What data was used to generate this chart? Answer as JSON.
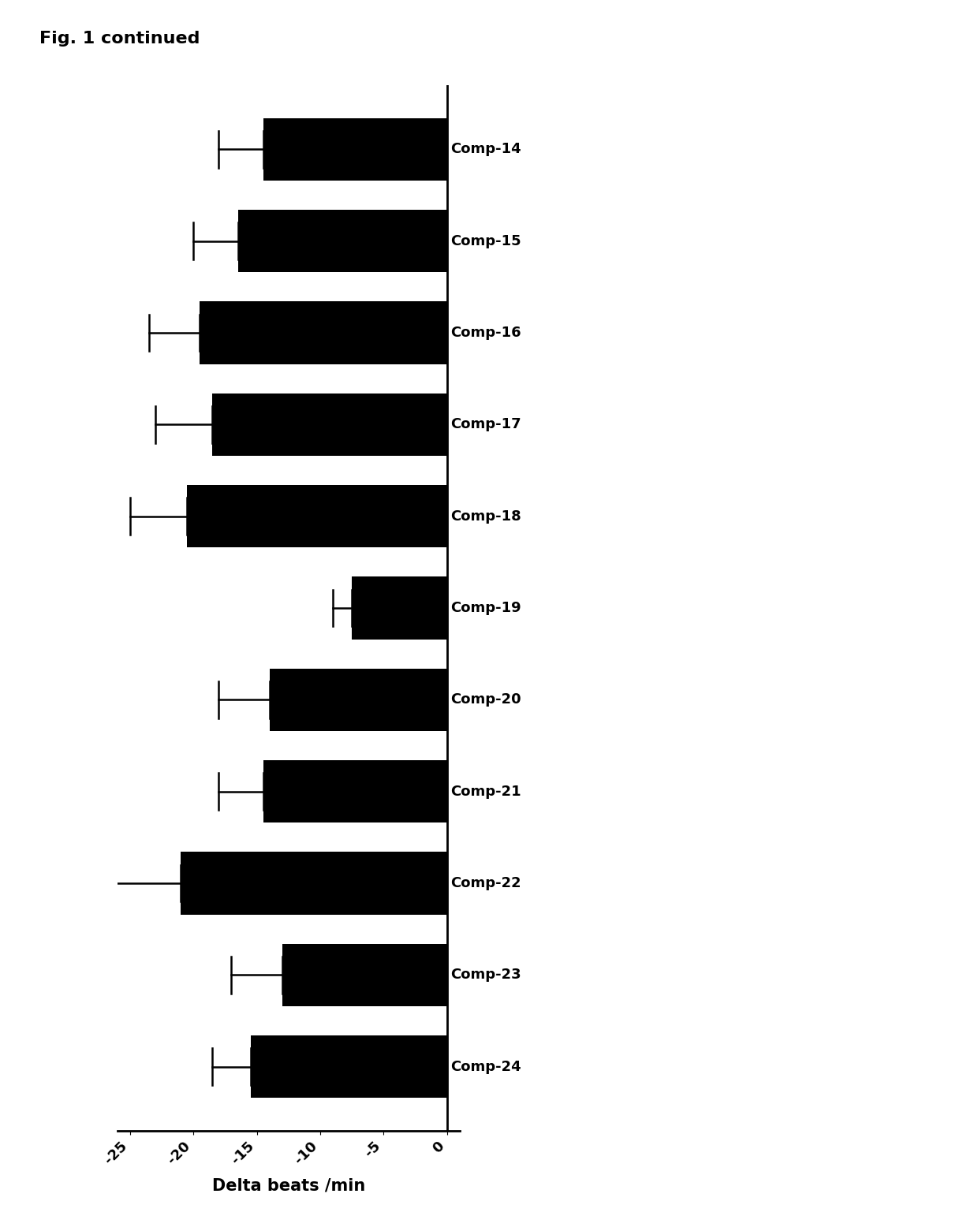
{
  "title": "Fig. 1 continued",
  "xlabel": "Delta beats /min",
  "categories": [
    "Comp-14",
    "Comp-15",
    "Comp-16",
    "Comp-17",
    "Comp-18",
    "Comp-19",
    "Comp-20",
    "Comp-21",
    "Comp-22",
    "Comp-23",
    "Comp-24"
  ],
  "values": [
    -14.5,
    -16.5,
    -19.5,
    -18.5,
    -20.5,
    -7.5,
    -14.0,
    -14.5,
    -21.0,
    -13.0,
    -15.5
  ],
  "errors": [
    3.5,
    3.5,
    4.0,
    4.5,
    4.5,
    1.5,
    4.0,
    3.5,
    5.5,
    4.0,
    3.0
  ],
  "bar_color": "#000000",
  "background_color": "#ffffff",
  "xlim": [
    -26,
    1
  ],
  "xticks": [
    -25,
    -20,
    -15,
    -10,
    -5,
    0
  ],
  "xtick_labels": [
    "-25",
    "-20",
    "-15",
    "-10",
    "-5",
    "0"
  ],
  "title_fontsize": 16,
  "xlabel_fontsize": 15,
  "tick_fontsize": 13,
  "label_fontsize": 13,
  "bar_height": 0.68
}
